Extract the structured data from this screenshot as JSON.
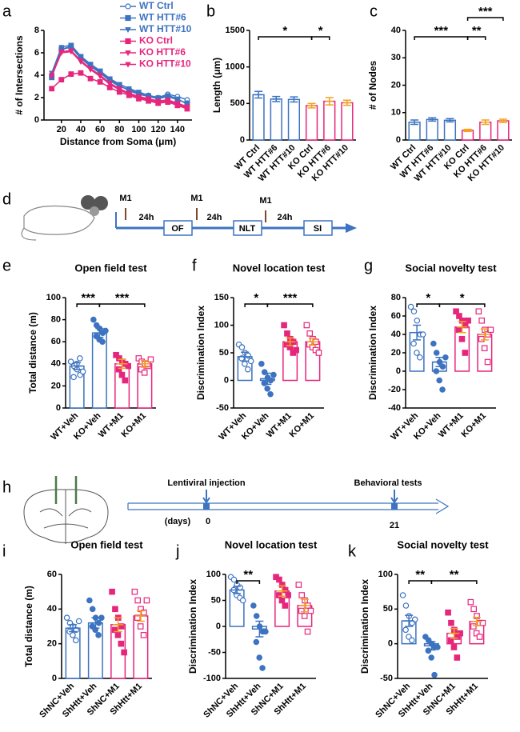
{
  "panel_labels": [
    "a",
    "b",
    "c",
    "d",
    "e",
    "f",
    "g",
    "h",
    "i",
    "j",
    "k"
  ],
  "protocol_d": {
    "m1": [
      "M1",
      "M1",
      "M1"
    ],
    "intervals": [
      "24h",
      "24h",
      "24h"
    ],
    "tests": [
      "OF",
      "NLT",
      "SI"
    ]
  },
  "protocol_h": {
    "events": [
      "Lentiviral  injection",
      "Behavioral tests"
    ],
    "unit": "(days)",
    "days": [
      "0",
      "21"
    ]
  },
  "chart_data": [
    {
      "type": "line",
      "y_label": "# of Intersections",
      "x_label": "Distance from Soma (μm)",
      "x": [
        10,
        20,
        30,
        40,
        50,
        60,
        70,
        80,
        90,
        100,
        110,
        120,
        130,
        140,
        150
      ],
      "xlim": [
        2,
        155
      ],
      "xticks": [
        20,
        40,
        60,
        80,
        100,
        120,
        140
      ],
      "ylim": [
        0,
        8
      ],
      "yticks": [
        0,
        2,
        4,
        6,
        8
      ],
      "legend": "upper right",
      "series": [
        {
          "name": "WT Ctrl",
          "color": "#3d73c0",
          "marker": "open-circle",
          "values": [
            4.0,
            6.3,
            6.5,
            5.5,
            4.8,
            4.2,
            3.5,
            3.0,
            2.7,
            2.4,
            2.2,
            2.0,
            2.3,
            2.1,
            1.8
          ]
        },
        {
          "name": "WT HTT#6",
          "color": "#3d73c0",
          "marker": "square",
          "values": [
            3.8,
            6.3,
            6.6,
            5.6,
            4.9,
            4.3,
            3.6,
            3.1,
            2.6,
            2.3,
            2.1,
            1.9,
            2.1,
            1.8,
            1.5
          ]
        },
        {
          "name": "WT HTT#10",
          "color": "#3d73c0",
          "marker": "triangle",
          "values": [
            4.2,
            6.5,
            6.7,
            5.7,
            5.0,
            4.4,
            3.7,
            3.2,
            2.8,
            2.5,
            2.2,
            2.0,
            2.2,
            1.9,
            1.4
          ]
        },
        {
          "name": "KO Ctrl",
          "color": "#e6267c",
          "marker": "square",
          "values": [
            2.8,
            3.6,
            4.1,
            4.2,
            3.7,
            3.4,
            2.9,
            2.5,
            2.2,
            1.9,
            1.7,
            1.5,
            1.6,
            1.3,
            1.0
          ]
        },
        {
          "name": "KO HTT#6",
          "color": "#e6267c",
          "marker": "triangle",
          "values": [
            4.0,
            6.1,
            6.2,
            5.3,
            4.6,
            4.0,
            3.3,
            2.8,
            2.4,
            2.1,
            1.9,
            1.7,
            1.8,
            1.5,
            1.2
          ]
        },
        {
          "name": "KO HTT#10",
          "color": "#e6267c",
          "marker": "triangle",
          "values": [
            3.9,
            6.0,
            6.1,
            5.2,
            4.5,
            3.9,
            3.2,
            2.7,
            2.3,
            2.0,
            1.8,
            1.6,
            1.7,
            1.4,
            1.1
          ]
        }
      ]
    },
    {
      "type": "bar",
      "y_label": "Length (μm)",
      "categories": [
        "WT Ctrl",
        "WT HTT#6",
        "WT HTT#10",
        "KO Ctrl",
        "KO HTT#6",
        "KO HTT#10"
      ],
      "values": [
        620,
        560,
        555,
        470,
        530,
        510
      ],
      "errors": [
        45,
        35,
        35,
        30,
        50,
        35
      ],
      "colors": [
        "#3d73c0",
        "#3d73c0",
        "#3d73c0",
        "#e6267c",
        "#e6267c",
        "#e6267c"
      ],
      "error_colors": [
        "#3d73c0",
        "#3d73c0",
        "#3d73c0",
        "#f2a21f",
        "#f2a21f",
        "#f2a21f"
      ],
      "ylim": [
        0,
        1500
      ],
      "yticks": [
        0,
        500,
        1000,
        1500
      ],
      "significance": [
        {
          "between": [
            0,
            3
          ],
          "label": "*"
        },
        {
          "between": [
            3,
            4
          ],
          "label": "*"
        }
      ]
    },
    {
      "type": "bar",
      "y_label": "# of Nodes",
      "categories": [
        "WT Ctrl",
        "WT HTT#6",
        "WT HTT#10",
        "KO Ctrl",
        "KO HTT#6",
        "KO HTT#10"
      ],
      "values": [
        6.5,
        7.5,
        7.2,
        3.5,
        6.5,
        7.0
      ],
      "errors": [
        0.8,
        0.6,
        0.6,
        0.4,
        0.8,
        0.6
      ],
      "colors": [
        "#3d73c0",
        "#3d73c0",
        "#3d73c0",
        "#e6267c",
        "#e6267c",
        "#e6267c"
      ],
      "error_colors": [
        "#3d73c0",
        "#3d73c0",
        "#3d73c0",
        "#f2a21f",
        "#f2a21f",
        "#f2a21f"
      ],
      "ylim": [
        0,
        40
      ],
      "yticks": [
        0,
        10,
        20,
        30,
        40
      ],
      "significance": [
        {
          "between": [
            0,
            3
          ],
          "label": "***"
        },
        {
          "between": [
            3,
            4
          ],
          "label": "**"
        },
        {
          "between": [
            3,
            5
          ],
          "label": "***"
        }
      ]
    },
    {
      "type": "bar",
      "title": "Open field test",
      "y_label": "Total distance (m)",
      "categories": [
        "WT+Veh",
        "KO+Veh",
        "WT+M1",
        "KO+M1"
      ],
      "values": [
        38,
        68,
        40,
        40
      ],
      "errors": [
        3,
        4,
        4,
        3
      ],
      "colors": [
        "#3d73c0",
        "#3d73c0",
        "#e6267c",
        "#e6267c"
      ],
      "error_colors": [
        "#3d73c0",
        "#3d73c0",
        "#f2a21f",
        "#f2a21f"
      ],
      "point_styles": [
        "open-circle",
        "filled-circle",
        "filled-square",
        "open-square"
      ],
      "ylim": [
        0,
        100
      ],
      "yticks": [
        0,
        20,
        40,
        60,
        80,
        100
      ],
      "points": [
        [
          42,
          38,
          35,
          30,
          28,
          40,
          45,
          33
        ],
        [
          80,
          75,
          72,
          68,
          65,
          62,
          60,
          70
        ],
        [
          48,
          45,
          42,
          40,
          35,
          30,
          25,
          38
        ],
        [
          45,
          42,
          40,
          38,
          35,
          32,
          40,
          44
        ]
      ],
      "significance": [
        {
          "between": [
            0,
            1
          ],
          "label": "***"
        },
        {
          "between": [
            1,
            3
          ],
          "label": "***"
        }
      ]
    },
    {
      "type": "bar",
      "title": "Novel location test",
      "y_label": "Discrimination Index",
      "categories": [
        "WT+Veh",
        "KO+Veh",
        "WT+M1",
        "KO+M1"
      ],
      "values": [
        43,
        3,
        70,
        70
      ],
      "errors": [
        8,
        10,
        7,
        6
      ],
      "colors": [
        "#3d73c0",
        "#3d73c0",
        "#e6267c",
        "#e6267c"
      ],
      "error_colors": [
        "#3d73c0",
        "#3d73c0",
        "#f2a21f",
        "#f2a21f"
      ],
      "point_styles": [
        "open-circle",
        "filled-circle",
        "filled-square",
        "open-square"
      ],
      "ylim": [
        -50,
        150
      ],
      "yticks": [
        -50,
        0,
        50,
        100,
        150
      ],
      "points": [
        [
          65,
          60,
          50,
          45,
          40,
          30,
          20,
          35
        ],
        [
          30,
          15,
          5,
          0,
          -5,
          -15,
          -25,
          10
        ],
        [
          100,
          85,
          75,
          70,
          65,
          60,
          50,
          55
        ],
        [
          100,
          85,
          75,
          70,
          65,
          60,
          55,
          50
        ]
      ],
      "significance": [
        {
          "between": [
            0,
            1
          ],
          "label": "*"
        },
        {
          "between": [
            1,
            3
          ],
          "label": "***"
        }
      ]
    },
    {
      "type": "bar",
      "title": "Social novelty test",
      "y_label": "Discrimination Index",
      "categories": [
        "WT+Veh",
        "KO+Veh",
        "WT+M1",
        "KO+M1"
      ],
      "values": [
        42,
        10,
        48,
        40
      ],
      "errors": [
        8,
        5,
        6,
        6
      ],
      "colors": [
        "#3d73c0",
        "#3d73c0",
        "#e6267c",
        "#e6267c"
      ],
      "error_colors": [
        "#3d73c0",
        "#3d73c0",
        "#f2a21f",
        "#f2a21f"
      ],
      "point_styles": [
        "open-circle",
        "filled-circle",
        "filled-square",
        "open-square"
      ],
      "ylim": [
        -40,
        80
      ],
      "yticks": [
        -40,
        -20,
        0,
        20,
        40,
        60,
        80
      ],
      "points": [
        [
          70,
          65,
          55,
          40,
          30,
          20,
          15,
          40
        ],
        [
          30,
          20,
          10,
          5,
          0,
          -10,
          -20,
          15
        ],
        [
          65,
          60,
          55,
          50,
          45,
          35,
          20,
          55
        ],
        [
          65,
          55,
          45,
          40,
          35,
          25,
          10,
          45
        ]
      ],
      "significance": [
        {
          "between": [
            0,
            1
          ],
          "label": "*"
        },
        {
          "between": [
            1,
            3
          ],
          "label": "*"
        }
      ]
    },
    {
      "type": "bar",
      "title": "Open field test",
      "y_label": "Total distance (m)",
      "categories": [
        "ShNC+Veh",
        "ShHtt+Veh",
        "ShNC+M1",
        "ShHtt+M1"
      ],
      "values": [
        29,
        32,
        31,
        36
      ],
      "errors": [
        2,
        3,
        4,
        3
      ],
      "colors": [
        "#3d73c0",
        "#3d73c0",
        "#e6267c",
        "#e6267c"
      ],
      "error_colors": [
        "#3d73c0",
        "#3d73c0",
        "#f2a21f",
        "#f2a21f"
      ],
      "point_styles": [
        "open-circle",
        "filled-circle",
        "filled-square",
        "open-square"
      ],
      "ylim": [
        0,
        60
      ],
      "yticks": [
        0,
        20,
        40,
        60
      ],
      "points": [
        [
          35,
          32,
          30,
          28,
          27,
          25,
          22,
          33
        ],
        [
          45,
          40,
          35,
          32,
          30,
          28,
          25,
          35
        ],
        [
          50,
          40,
          35,
          30,
          28,
          25,
          20,
          15
        ],
        [
          50,
          45,
          40,
          38,
          35,
          30,
          25,
          45
        ]
      ],
      "significance": []
    },
    {
      "type": "bar",
      "title": "Novel location test",
      "y_label": "Discrimination Index",
      "categories": [
        "ShNC+Veh",
        "ShHtt+Veh",
        "ShNC+M1",
        "ShHtt+M1"
      ],
      "values": [
        70,
        -5,
        68,
        40
      ],
      "errors": [
        7,
        15,
        10,
        12
      ],
      "colors": [
        "#3d73c0",
        "#3d73c0",
        "#e6267c",
        "#e6267c"
      ],
      "error_colors": [
        "#3d73c0",
        "#3d73c0",
        "#f2a21f",
        "#f2a21f"
      ],
      "point_styles": [
        "open-circle",
        "filled-circle",
        "filled-square",
        "open-square"
      ],
      "ylim": [
        -100,
        100
      ],
      "yticks": [
        -100,
        -50,
        0,
        50,
        100
      ],
      "points": [
        [
          95,
          90,
          80,
          75,
          70,
          60,
          55,
          50
        ],
        [
          40,
          20,
          0,
          -10,
          -30,
          -60,
          -80,
          -10
        ],
        [
          95,
          90,
          80,
          70,
          60,
          50,
          40,
          60
        ],
        [
          80,
          60,
          50,
          40,
          30,
          20,
          -10,
          30
        ]
      ],
      "significance": [
        {
          "between": [
            0,
            1
          ],
          "label": "**"
        }
      ]
    },
    {
      "type": "bar",
      "title": "Social novelty test",
      "y_label": "Discrimination Index",
      "categories": [
        "ShNC+Veh",
        "ShHtt+Veh",
        "ShNC+M1",
        "ShHtt+M1"
      ],
      "values": [
        33,
        -3,
        15,
        32
      ],
      "errors": [
        8,
        6,
        7,
        6
      ],
      "colors": [
        "#3d73c0",
        "#3d73c0",
        "#e6267c",
        "#e6267c"
      ],
      "error_colors": [
        "#3d73c0",
        "#3d73c0",
        "#f2a21f",
        "#f2a21f"
      ],
      "point_styles": [
        "open-circle",
        "filled-circle",
        "filled-square",
        "open-square"
      ],
      "ylim": [
        -50,
        100
      ],
      "yticks": [
        -50,
        0,
        50,
        100
      ],
      "points": [
        [
          70,
          55,
          40,
          30,
          20,
          10,
          5,
          35
        ],
        [
          10,
          5,
          0,
          -5,
          -10,
          -20,
          -45,
          -5
        ],
        [
          45,
          30,
          20,
          10,
          5,
          -5,
          -20,
          15
        ],
        [
          60,
          50,
          40,
          30,
          25,
          15,
          10,
          30
        ]
      ],
      "significance": [
        {
          "between": [
            0,
            1
          ],
          "label": "**"
        },
        {
          "between": [
            1,
            3
          ],
          "label": "**"
        }
      ]
    }
  ]
}
